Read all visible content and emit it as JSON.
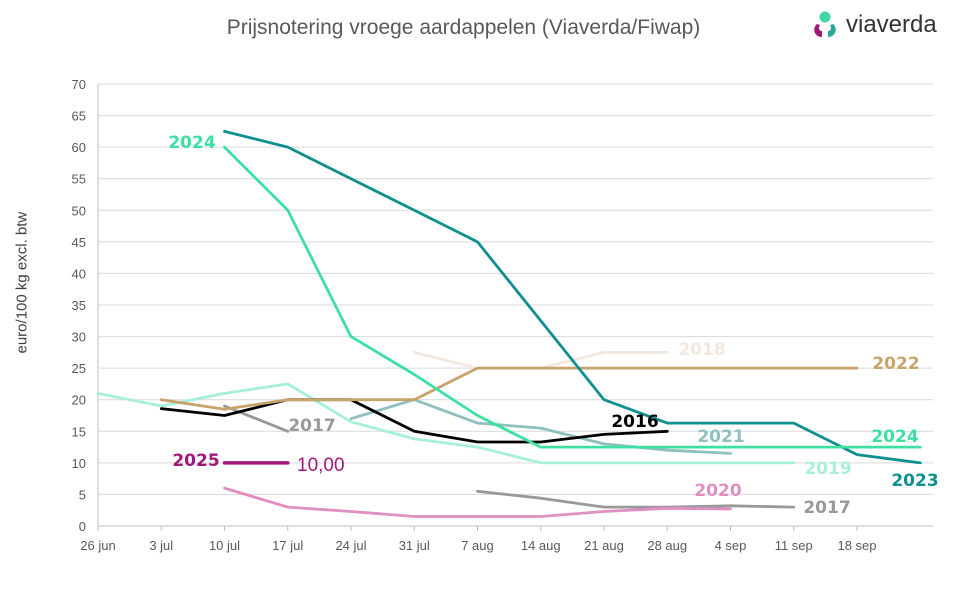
{
  "logo": {
    "name": "viaverda",
    "icon": "viaverda-logo-icon"
  },
  "chart_data": {
    "type": "line",
    "title": "Prijsnotering vroege aardappelen (Viaverda/Fiwap)",
    "xlabel": "",
    "ylabel": "euro/100 kg excl. btw",
    "ylim": [
      0,
      70
    ],
    "yticks": [
      0,
      5,
      10,
      15,
      20,
      25,
      30,
      35,
      40,
      45,
      50,
      55,
      60,
      65,
      70
    ],
    "categories": [
      "26 jun",
      "3 jul",
      "10 jul",
      "17 jul",
      "24 jul",
      "31 jul",
      "7 aug",
      "14 aug",
      "21 aug",
      "28 aug",
      "4 sep",
      "11 sep",
      "18 sep"
    ],
    "grid": true,
    "series": [
      {
        "name": "2016",
        "color": "#000000",
        "x": [
          "3 jul",
          "10 jul",
          "17 jul",
          "24 jul",
          "31 jul",
          "7 aug",
          "14 aug",
          "21 aug",
          "28 aug"
        ],
        "values": [
          18.6,
          17.5,
          20.0,
          20.0,
          15.0,
          13.3,
          13.3,
          14.5,
          15.0
        ]
      },
      {
        "name": "2017",
        "color": "#999999",
        "x": [
          "10 jul",
          "17 jul"
        ],
        "values": [
          19.0,
          15.0
        ]
      },
      {
        "name": "2017",
        "color": "#999999",
        "x": [
          "7 aug",
          "14 aug",
          "21 aug",
          "28 aug",
          "4 sep",
          "11 sep"
        ],
        "values": [
          5.5,
          4.4,
          3.0,
          3.0,
          3.2,
          3.0
        ]
      },
      {
        "name": "2018",
        "color": "#f2e8dd",
        "x": [
          "31 jul",
          "7 aug",
          "14 aug",
          "21 aug",
          "28 aug"
        ],
        "values": [
          27.5,
          25.0,
          25.0,
          27.5,
          27.5
        ]
      },
      {
        "name": "2019",
        "color": "#a6f0d6",
        "x": [
          "26 jun",
          "3 jul",
          "10 jul",
          "17 jul",
          "24 jul",
          "31 jul",
          "7 aug",
          "14 aug",
          "21 aug",
          "28 aug",
          "4 sep",
          "11 sep"
        ],
        "values": [
          21.0,
          19.0,
          21.0,
          22.5,
          16.5,
          13.8,
          12.5,
          10.0,
          10.0,
          10.0,
          10.0,
          10.0
        ]
      },
      {
        "name": "2020",
        "color": "#e08fc0",
        "x": [
          "10 jul",
          "17 jul",
          "24 jul",
          "31 jul",
          "7 aug",
          "14 aug",
          "21 aug",
          "28 aug",
          "4 sep"
        ],
        "values": [
          6.0,
          3.0,
          2.3,
          1.5,
          1.5,
          1.5,
          2.3,
          2.8,
          2.7
        ]
      },
      {
        "name": "2021",
        "color": "#8fbfbf",
        "x": [
          "24 jul",
          "31 jul",
          "7 aug",
          "14 aug",
          "21 aug",
          "28 aug",
          "4 sep"
        ],
        "values": [
          17.0,
          20.0,
          16.3,
          15.5,
          13.0,
          12.0,
          11.5
        ]
      },
      {
        "name": "2022",
        "color": "#c8a36a",
        "x": [
          "3 jul",
          "10 jul",
          "17 jul",
          "24 jul",
          "31 jul",
          "7 aug",
          "14 aug",
          "21 aug",
          "28 aug",
          "4 sep",
          "11 sep",
          "18 sep"
        ],
        "values": [
          20.0,
          18.5,
          20.0,
          20.0,
          20.0,
          25.0,
          25.0,
          25.0,
          25.0,
          25.0,
          25.0,
          25.0
        ]
      },
      {
        "name": "2023",
        "color": "#0f9090",
        "x": [
          "10 jul",
          "17 jul",
          "24 jul",
          "31 jul",
          "7 aug",
          "14 aug",
          "21 aug",
          "28 aug",
          "4 sep",
          "11 sep",
          "18 sep",
          "25 sep"
        ],
        "values": [
          62.5,
          60.0,
          55.0,
          50.0,
          45.0,
          32.5,
          20.0,
          16.3,
          16.3,
          16.3,
          11.3,
          10.0
        ]
      },
      {
        "name": "2024",
        "color": "#3de0a0",
        "x": [
          "10 jul",
          "17 jul",
          "24 jul",
          "31 jul",
          "7 aug",
          "14 aug",
          "21 aug",
          "28 aug",
          "4 sep",
          "11 sep",
          "18 sep",
          "25 sep"
        ],
        "values": [
          60.0,
          50.0,
          30.0,
          24.0,
          17.5,
          12.5,
          12.5,
          12.5,
          12.5,
          12.5,
          12.5,
          12.5
        ]
      },
      {
        "name": "2025",
        "color": "#a0187a",
        "x": [
          "10 jul",
          "17 jul"
        ],
        "values": [
          10.0,
          10.0
        ]
      }
    ],
    "labels": [
      {
        "text": "2024",
        "color": "#3de0a0"
      },
      {
        "text": "2017",
        "color": "#999999"
      },
      {
        "text": "2025",
        "color": "#a0187a"
      },
      {
        "text": "2018",
        "color": "#f2e8dd"
      },
      {
        "text": "2022",
        "color": "#c8a36a"
      },
      {
        "text": "2016",
        "color": "#000000"
      },
      {
        "text": "2021",
        "color": "#8fbfbf"
      },
      {
        "text": "2024",
        "color": "#3de0a0"
      },
      {
        "text": "2019",
        "color": "#a6f0d6"
      },
      {
        "text": "2023",
        "color": "#0f9090"
      },
      {
        "text": "2020",
        "color": "#e08fc0"
      },
      {
        "text": "2017",
        "color": "#999999"
      }
    ],
    "annotation": {
      "text": "10,00",
      "color": "#a0187a"
    }
  }
}
